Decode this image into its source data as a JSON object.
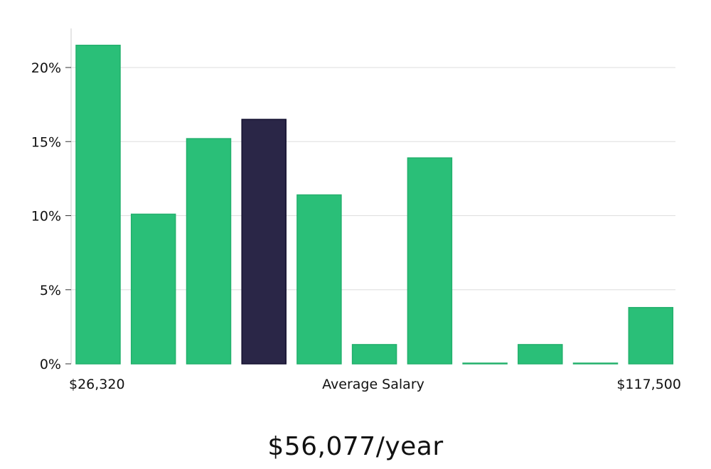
{
  "chart_data": {
    "type": "bar",
    "values": [
      21.5,
      10.1,
      15.2,
      16.5,
      11.4,
      1.3,
      13.9,
      0.05,
      1.3,
      0.05,
      3.8
    ],
    "highlight_index": 3,
    "ylim": [
      0,
      22.5
    ],
    "yticks": [
      0,
      5,
      10,
      15,
      20
    ],
    "ytick_labels": [
      "0%",
      "5%",
      "10%",
      "15%",
      "20%"
    ],
    "x_min_label": "$26,320",
    "x_center_label": "Average Salary",
    "x_max_label": "$117,500",
    "grid": true,
    "colors": {
      "bar": "#2abf78",
      "bar_edge": "#22b06c",
      "highlight": "#2a2647",
      "grid": "#dedede",
      "axis": "#cccccc"
    }
  },
  "footer": {
    "average_salary": "$56,077/year"
  }
}
